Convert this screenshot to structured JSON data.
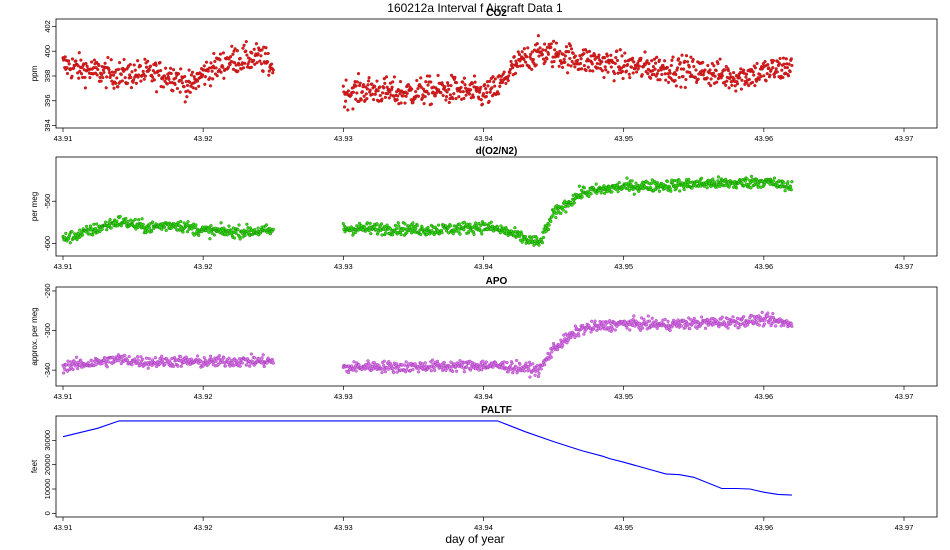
{
  "chart_data": {
    "type": "scatter",
    "title": "160212a   Interval f Aircraft Data 1",
    "xlabel": "day of year",
    "xlim": [
      43.9095,
      43.9725
    ],
    "x_ticks": [
      43.91,
      43.92,
      43.93,
      43.94,
      43.95,
      43.96,
      43.97
    ],
    "x_tick_labels": [
      "43.91",
      "43.92",
      "43.93",
      "43.94",
      "43.95",
      "43.96",
      "43.97"
    ],
    "panels": [
      {
        "id": "co2",
        "title": "CO2",
        "ylabel": "ppm",
        "ylim": [
          393.8,
          402.6
        ],
        "y_ticks": [
          394,
          396,
          398,
          400,
          402
        ],
        "y_tick_labels": [
          "394",
          "396",
          "398",
          "400",
          "402"
        ],
        "color": "#e31a1c",
        "stroke_color": "#a01010",
        "marker": "point",
        "noise": 0.8,
        "segments": [
          {
            "x": [
              43.91,
              43.912,
              43.914,
              43.916,
              43.918,
              43.919,
              43.92,
              43.922,
              43.924,
              43.925
            ],
            "y": [
              398.9,
              398.4,
              398.1,
              398.2,
              398.0,
              397.1,
              398.2,
              399.3,
              399.5,
              398.7
            ]
          },
          {
            "x": [
              43.93,
              43.932,
              43.934,
              43.936,
              43.938,
              43.94,
              43.941,
              43.942,
              43.943,
              43.944,
              43.945,
              43.947,
              43.95,
              43.953,
              43.956,
              43.958,
              43.96,
              43.962
            ],
            "y": [
              396.6,
              396.9,
              396.6,
              396.8,
              396.9,
              396.5,
              397.0,
              398.5,
              399.4,
              399.9,
              399.8,
              399.3,
              398.8,
              398.6,
              398.3,
              397.9,
              398.3,
              398.8
            ]
          }
        ]
      },
      {
        "id": "o2n2",
        "title": "d(O2/N2)",
        "ylabel": "per meg",
        "ylim": [
          -612,
          -518
        ],
        "y_ticks": [
          -600,
          -560
        ],
        "y_tick_labels": [
          "-600",
          "-560"
        ],
        "color": "#33dd11",
        "stroke_color": "#117700",
        "marker": "point",
        "noise": 4,
        "segments": [
          {
            "x": [
              43.91,
              43.912,
              43.914,
              43.916,
              43.918,
              43.92,
              43.922,
              43.925
            ],
            "y": [
              -596,
              -588,
              -579,
              -585,
              -582,
              -588,
              -589,
              -588
            ]
          },
          {
            "x": [
              43.93,
              43.932,
              43.934,
              43.936,
              43.938,
              43.94,
              43.9415,
              43.943,
              43.944,
              43.945,
              43.947,
              43.95,
              43.953,
              43.956,
              43.958,
              43.96,
              43.962
            ],
            "y": [
              -586,
              -586,
              -586,
              -587,
              -586,
              -584,
              -588,
              -596,
              -600,
              -572,
              -552,
              -546,
              -545,
              -543,
              -543,
              -541,
              -547
            ]
          }
        ]
      },
      {
        "id": "apo",
        "title": "APO",
        "ylabel": "approx. per meg",
        "ylim": [
          -356,
          -256
        ],
        "y_ticks": [
          -340,
          -300,
          -260
        ],
        "y_tick_labels": [
          "-340",
          "-300",
          "-260"
        ],
        "color": "#dd77ee",
        "stroke_color": "#9933aa",
        "marker": "point",
        "noise": 4,
        "segments": [
          {
            "x": [
              43.91,
              43.912,
              43.914,
              43.916,
              43.918,
              43.92,
              43.922,
              43.925
            ],
            "y": [
              -336,
              -333,
              -329,
              -332,
              -331,
              -332,
              -331,
              -331
            ]
          },
          {
            "x": [
              43.93,
              43.932,
              43.934,
              43.936,
              43.938,
              43.94,
              43.9415,
              43.943,
              43.944,
              43.945,
              43.947,
              43.95,
              43.953,
              43.956,
              43.958,
              43.96,
              43.962
            ],
            "y": [
              -338,
              -336,
              -337,
              -336,
              -336,
              -335,
              -336,
              -338,
              -340,
              -318,
              -298,
              -293,
              -294,
              -292,
              -291,
              -289,
              -293
            ]
          }
        ]
      },
      {
        "id": "paltf",
        "title": "PALTF",
        "ylabel": "feet",
        "ylim": [
          -1500,
          40000
        ],
        "y_ticks": [
          0,
          10000,
          20000,
          30000
        ],
        "y_tick_labels": [
          "0",
          "10000",
          "20000",
          "30000"
        ],
        "color": "#0000ff",
        "marker": "line",
        "segments": [
          {
            "x": [
              43.91,
              43.9125,
              43.914,
              43.92,
              43.93,
              43.94,
              43.941,
              43.943,
              43.945,
              43.947,
              43.9485,
              43.949,
              43.95,
              43.952,
              43.953,
              43.954,
              43.955,
              43.957,
              43.958,
              43.959,
              43.96,
              43.961,
              43.962
            ],
            "y": [
              31500,
              35000,
              38000,
              38000,
              38000,
              38000,
              38000,
              33500,
              29500,
              25800,
              23500,
              22500,
              21000,
              17800,
              16200,
              15900,
              14800,
              10200,
              10200,
              10000,
              8700,
              7800,
              7500
            ]
          }
        ]
      }
    ]
  }
}
